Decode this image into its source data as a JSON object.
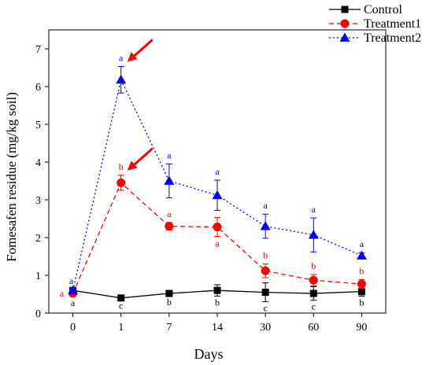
{
  "chart_data": {
    "type": "line",
    "title": "",
    "xlabel": "Days",
    "ylabel": "Fomesafen residue (mg/kg soil)",
    "categories": [
      "0",
      "1",
      "7",
      "14",
      "30",
      "60",
      "90"
    ],
    "ylim": [
      0,
      7.5
    ],
    "yticks": [
      0,
      1,
      2,
      3,
      4,
      5,
      6,
      7
    ],
    "grid": false,
    "legend_position": "top-right",
    "series": [
      {
        "name": "Control",
        "color": "#000000",
        "line_style": "solid",
        "marker": "square",
        "values": [
          0.6,
          0.4,
          0.52,
          0.6,
          0.55,
          0.52,
          0.57
        ],
        "error": [
          0.05,
          0.04,
          0.06,
          0.15,
          0.25,
          0.18,
          0.12
        ],
        "letters": [
          "a",
          "c",
          "b",
          "b",
          "c",
          "c",
          "b"
        ]
      },
      {
        "name": "Treatment1",
        "color": "#ff0000",
        "line_style": "dashed",
        "marker": "circle",
        "values": [
          0.52,
          3.45,
          2.3,
          2.28,
          1.12,
          0.87,
          0.77
        ],
        "error": [
          0.05,
          0.2,
          0.1,
          0.25,
          0.18,
          0.15,
          0.12
        ],
        "letters": [
          "a",
          "b",
          "a",
          "a",
          "b",
          "b",
          "b"
        ]
      },
      {
        "name": "Treatment2",
        "color": "#0000ff",
        "line_style": "dotted",
        "marker": "triangle",
        "values": [
          0.6,
          6.18,
          3.5,
          3.12,
          2.3,
          2.07,
          1.52
        ],
        "error": [
          0.05,
          0.35,
          0.45,
          0.4,
          0.32,
          0.45,
          0.08
        ],
        "letters": [
          "a",
          "a",
          "a",
          "a",
          "a",
          "a",
          "a"
        ]
      }
    ],
    "annotations": [
      {
        "type": "arrow",
        "color": "#ff0000",
        "points_to": {
          "category": "1",
          "series": "Treatment2"
        }
      },
      {
        "type": "arrow",
        "color": "#ff0000",
        "points_to": {
          "category": "1",
          "series": "Treatment1"
        }
      }
    ]
  }
}
